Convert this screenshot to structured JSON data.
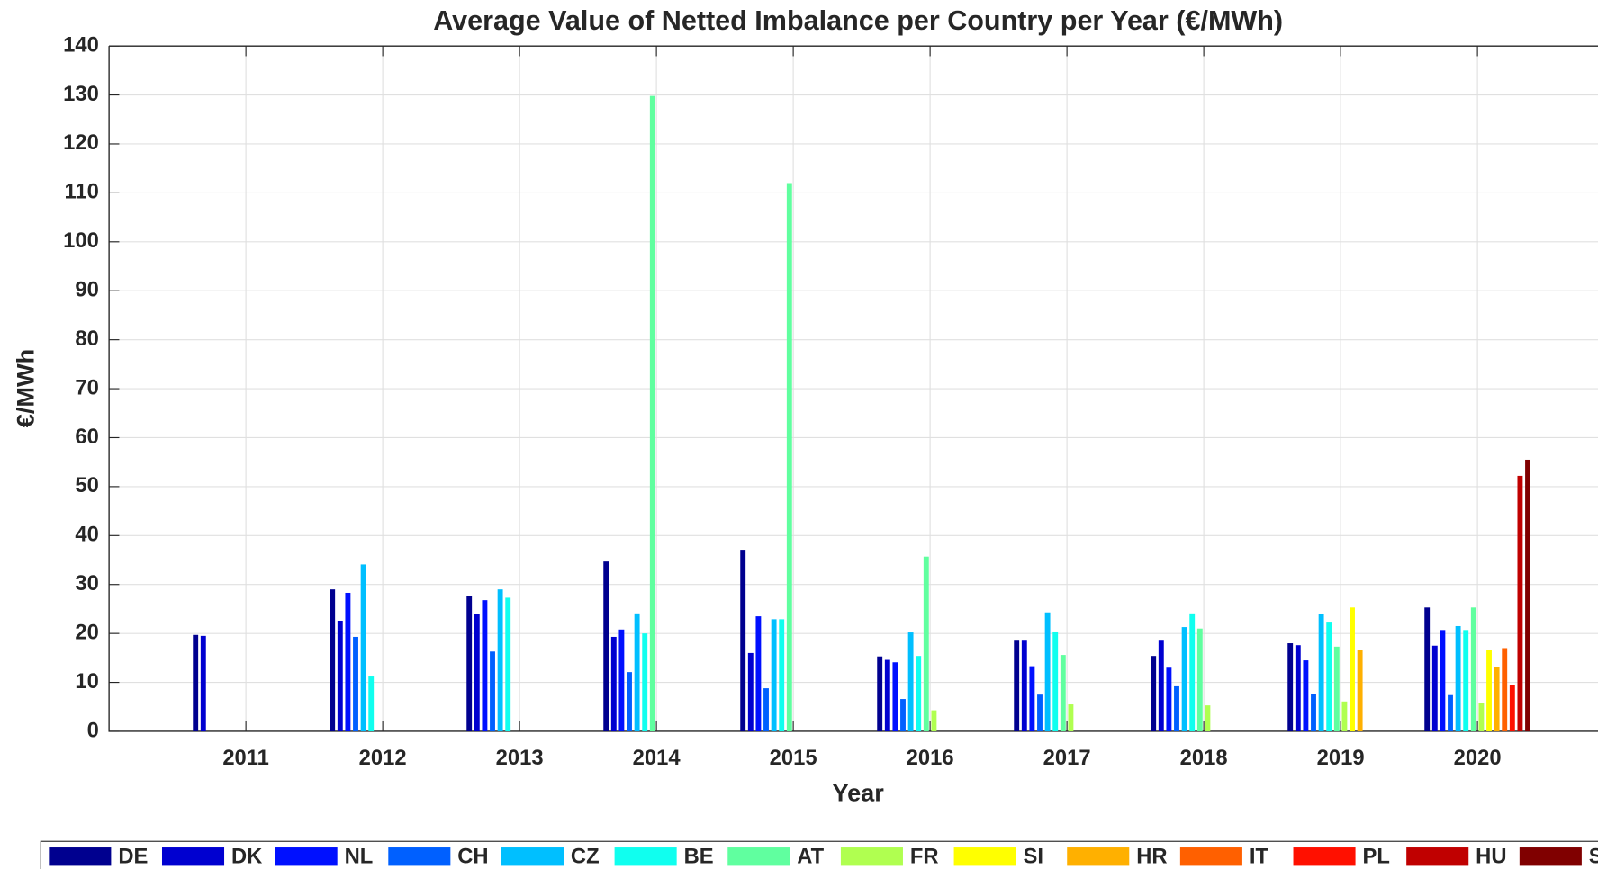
{
  "chart_data": {
    "type": "bar",
    "title": "Average Value of Netted Imbalance per Country per Year (€/MWh)",
    "x_label": "Year",
    "y_label": "€/MWh",
    "x": [
      2011,
      2012,
      2013,
      2014,
      2015,
      2016,
      2017,
      2018,
      2019,
      2020
    ],
    "xlim": [
      2010,
      2021
    ],
    "xticks": [
      2011,
      2012,
      2013,
      2014,
      2015,
      2016,
      2017,
      2018,
      2019,
      2020
    ],
    "ylim": [
      0,
      140
    ],
    "yticks": [
      0,
      10,
      20,
      30,
      40,
      50,
      60,
      70,
      80,
      90,
      100,
      110,
      120,
      130,
      140
    ],
    "grid": true,
    "legend": "bottom",
    "series": [
      {
        "name": "DE",
        "color": "#00008f",
        "values": [
          19.7,
          29,
          27.6,
          34.7,
          37.1,
          15.3,
          18.7,
          15.4,
          18,
          25.3
        ]
      },
      {
        "name": "DK",
        "color": "#0000d0",
        "values": [
          19.5,
          22.6,
          23.9,
          19.3,
          16,
          14.6,
          18.7,
          18.7,
          17.6,
          17.5
        ]
      },
      {
        "name": "NL",
        "color": "#0010ff",
        "values": [
          null,
          28.3,
          26.8,
          20.8,
          23.5,
          14.1,
          13.3,
          13,
          14.5,
          20.7
        ]
      },
      {
        "name": "CH",
        "color": "#0060ff",
        "values": [
          null,
          19.3,
          16.3,
          12.1,
          8.8,
          6.6,
          7.5,
          9.2,
          7.6,
          7.4
        ]
      },
      {
        "name": "CZ",
        "color": "#00bfff",
        "values": [
          null,
          34.1,
          29,
          24.1,
          22.9,
          20.2,
          24.3,
          21.3,
          24,
          21.5
        ]
      },
      {
        "name": "BE",
        "color": "#10ffef",
        "values": [
          null,
          11.2,
          27.3,
          20,
          22.9,
          15.4,
          20.4,
          24.1,
          22.4,
          20.7
        ]
      },
      {
        "name": "AT",
        "color": "#60ff9f",
        "values": [
          null,
          null,
          null,
          129.8,
          112,
          35.7,
          15.6,
          21,
          17.3,
          25.3
        ]
      },
      {
        "name": "FR",
        "color": "#b0ff50",
        "values": [
          null,
          null,
          null,
          null,
          null,
          4.3,
          5.5,
          5.3,
          6.1,
          5.8
        ]
      },
      {
        "name": "SI",
        "color": "#ffff00",
        "values": [
          null,
          null,
          null,
          null,
          null,
          null,
          null,
          null,
          25.3,
          16.6
        ]
      },
      {
        "name": "HR",
        "color": "#ffb000",
        "values": [
          null,
          null,
          null,
          null,
          null,
          null,
          null,
          null,
          16.6,
          13.2
        ]
      },
      {
        "name": "IT",
        "color": "#ff6000",
        "values": [
          null,
          null,
          null,
          null,
          null,
          null,
          null,
          null,
          null,
          17
        ]
      },
      {
        "name": "PL",
        "color": "#ff1000",
        "values": [
          null,
          null,
          null,
          null,
          null,
          null,
          null,
          null,
          null,
          9.5
        ]
      },
      {
        "name": "HU",
        "color": "#c00000",
        "values": [
          null,
          null,
          null,
          null,
          null,
          null,
          null,
          null,
          null,
          52.2
        ]
      },
      {
        "name": "SK",
        "color": "#800000",
        "values": [
          null,
          null,
          null,
          null,
          null,
          null,
          null,
          null,
          null,
          55.5
        ]
      }
    ]
  }
}
